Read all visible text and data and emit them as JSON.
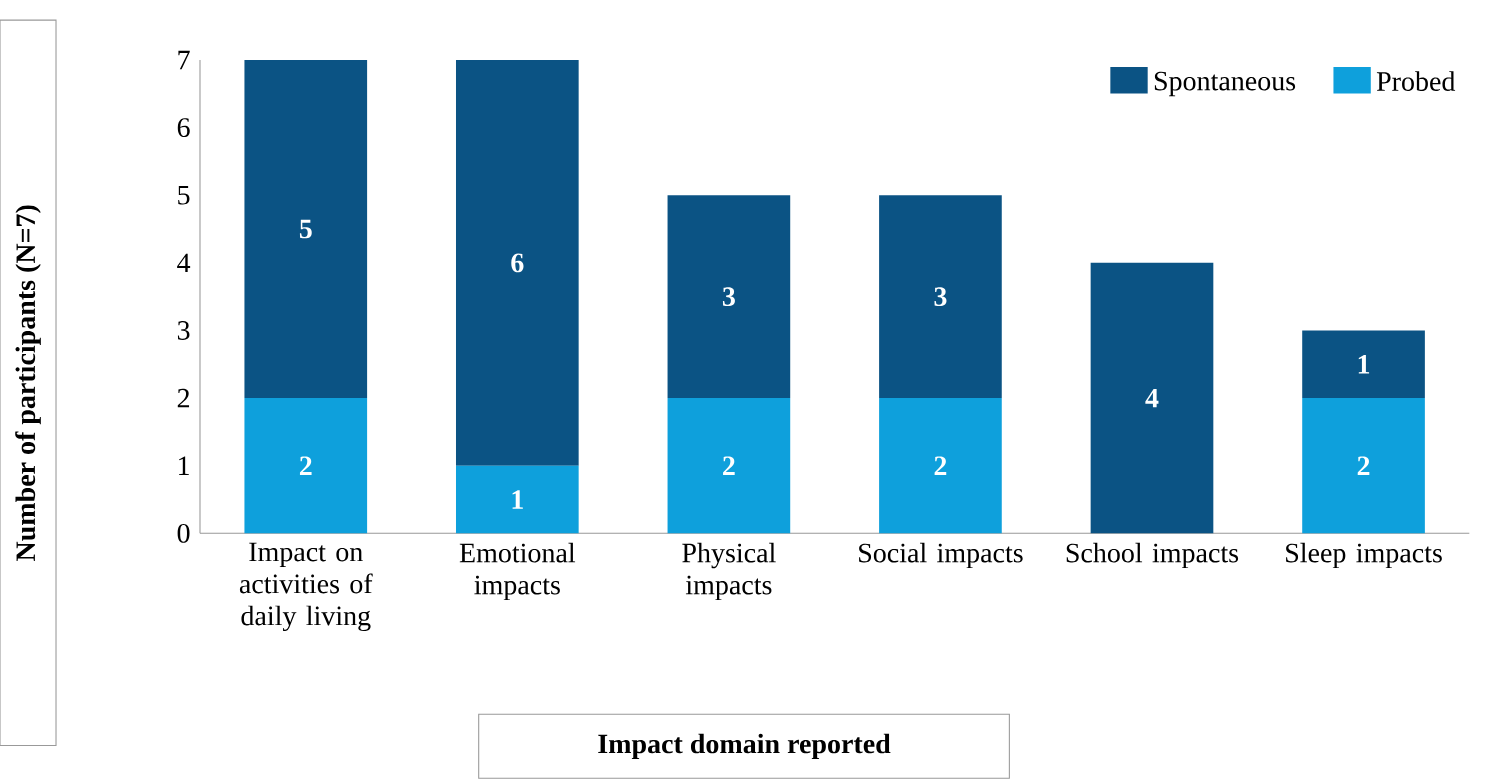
{
  "chart_data": {
    "type": "bar",
    "stacked": true,
    "xlabel": "Impact domain reported",
    "ylabel": "Number of participants (N=7)",
    "categories": [
      "Impact on activities of daily living",
      "Emotional impacts",
      "Physical impacts",
      "Social impacts",
      "School impacts",
      "Sleep impacts"
    ],
    "series": [
      {
        "name": "Probed",
        "color": "#0ea0dc",
        "values": [
          2,
          1,
          2,
          2,
          0,
          2
        ],
        "value_labels": [
          "2",
          "1",
          "2",
          "2",
          null,
          "2"
        ]
      },
      {
        "name": "Spontaneous",
        "color": "#0b5384",
        "values": [
          5,
          6,
          3,
          3,
          4,
          1
        ],
        "value_labels": [
          "5",
          "6",
          "3",
          "3",
          "4",
          "1"
        ]
      }
    ],
    "ylim": [
      0,
      7
    ],
    "yticks": [
      0,
      1,
      2,
      3,
      4,
      5,
      6,
      7
    ],
    "grid": false,
    "legend": "top right"
  }
}
